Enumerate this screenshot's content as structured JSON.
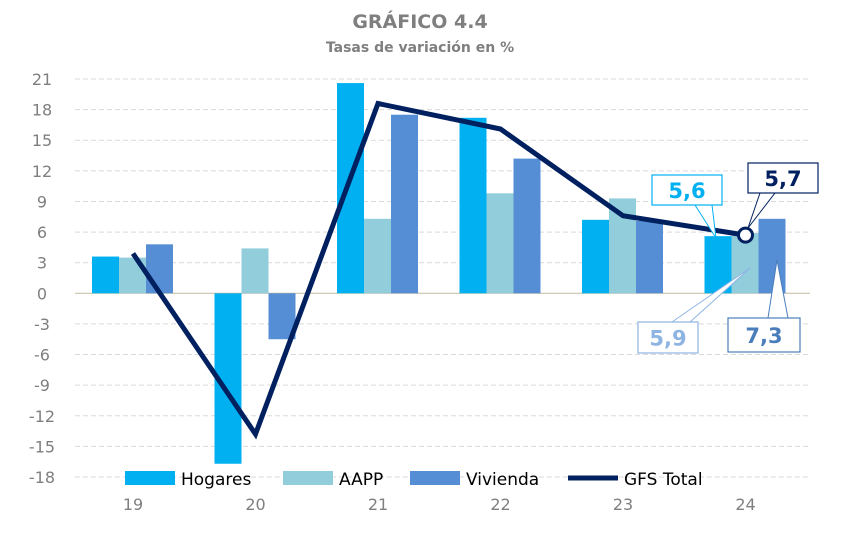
{
  "chart_data": {
    "type": "bar",
    "title": "GRÁFICO 4.4",
    "subtitle": "Tasas de variación en %",
    "categories": [
      "19",
      "20",
      "21",
      "22",
      "23",
      "24"
    ],
    "ylim": [
      -18,
      21
    ],
    "yticks": [
      21,
      18,
      15,
      12,
      9,
      6,
      3,
      0,
      -3,
      -6,
      -9,
      -12,
      -15,
      -18
    ],
    "grid": true,
    "legend_placement": "bottom",
    "series": [
      {
        "name": "Hogares",
        "type": "bar",
        "color": "#00b0f0",
        "values": [
          3.6,
          -16.7,
          20.6,
          17.2,
          7.2,
          5.6
        ]
      },
      {
        "name": "AAPP",
        "type": "bar",
        "color": "#92cddc",
        "values": [
          3.5,
          4.4,
          7.3,
          9.8,
          9.3,
          5.9
        ]
      },
      {
        "name": "Vivienda",
        "type": "bar",
        "color": "#558ed5",
        "values": [
          4.8,
          -4.5,
          17.5,
          13.2,
          7.1,
          7.3
        ]
      },
      {
        "name": "GFS Total",
        "type": "line",
        "color": "#002060",
        "values": [
          3.9,
          -13.8,
          18.6,
          16.1,
          7.6,
          5.7
        ]
      }
    ],
    "annotations": [
      {
        "label": "5,6",
        "series": "Hogares",
        "category": "24",
        "color": "#00b0f0"
      },
      {
        "label": "5,7",
        "series": "GFS Total",
        "category": "24",
        "color": "#002060"
      },
      {
        "label": "5,9",
        "series": "AAPP",
        "category": "24",
        "color": "#8eb4e3"
      },
      {
        "label": "7,3",
        "series": "Vivienda",
        "category": "24",
        "color": "#4a7ebb"
      }
    ]
  }
}
